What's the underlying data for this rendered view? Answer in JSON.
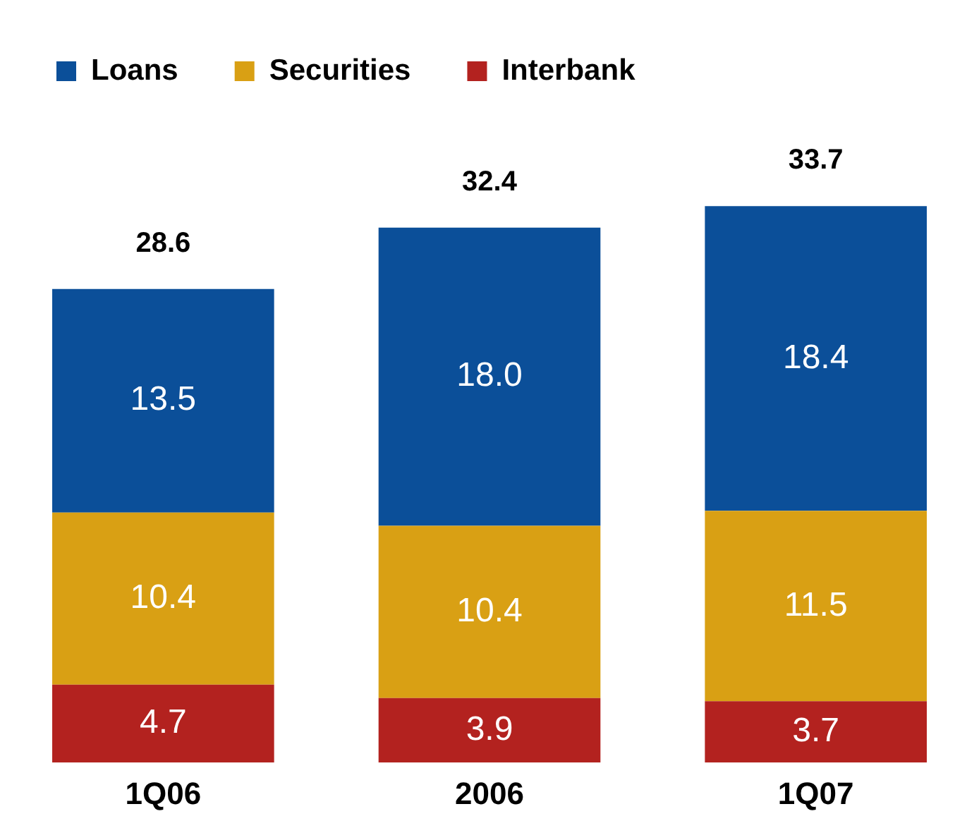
{
  "chart_data": {
    "type": "bar",
    "stacked": true,
    "categories": [
      "1Q06",
      "2006",
      "1Q07"
    ],
    "series": [
      {
        "name": "Interbank",
        "color": "#b3221f",
        "values": [
          4.7,
          3.9,
          3.7
        ],
        "value_labels": [
          "4.7",
          "3.9",
          "3.7"
        ]
      },
      {
        "name": "Securities",
        "color": "#d9a014",
        "values": [
          10.4,
          10.4,
          11.5
        ],
        "value_labels": [
          "10.4",
          "10.4",
          "11.5"
        ]
      },
      {
        "name": "Loans",
        "color": "#0b4f99",
        "values": [
          13.5,
          18.0,
          18.4
        ],
        "value_labels": [
          "13.5",
          "18.0",
          "18.4"
        ]
      }
    ],
    "totals": [
      "28.6",
      "32.4",
      "33.7"
    ],
    "legend": "top left",
    "grid": false
  }
}
